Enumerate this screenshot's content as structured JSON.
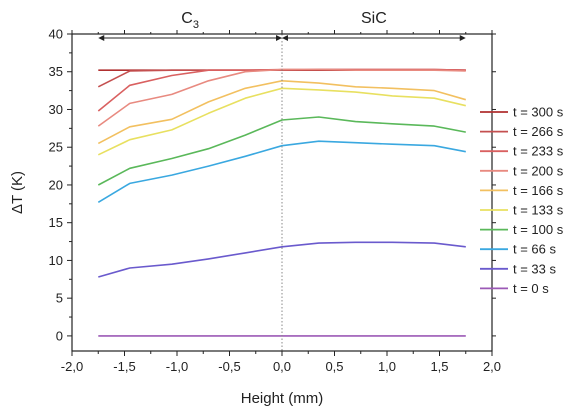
{
  "chart_data": {
    "type": "line",
    "xlabel": "Height (mm)",
    "ylabel": "ΔT (K)",
    "xlim": [
      -2.0,
      2.0
    ],
    "ylim": [
      -2,
      40
    ],
    "x_ticks": [
      "-2,0",
      "-1,5",
      "-1,0",
      "-0,5",
      "0,0",
      "0,5",
      "1,0",
      "1,5",
      "2,0"
    ],
    "x_tick_values": [
      -2.0,
      -1.5,
      -1.0,
      -0.5,
      0.0,
      0.5,
      1.0,
      1.5,
      2.0
    ],
    "y_ticks": [
      "0",
      "5",
      "10",
      "15",
      "20",
      "25",
      "30",
      "35",
      "40"
    ],
    "y_tick_values": [
      0,
      5,
      10,
      15,
      20,
      25,
      30,
      35,
      40
    ],
    "grid": false,
    "legend_position": "right",
    "regions": [
      {
        "label_main": "C",
        "label_sub": "3",
        "from": -1.75,
        "to": 0.0
      },
      {
        "label_main": "SiC",
        "label_sub": "",
        "from": 0.0,
        "to": 1.75
      }
    ],
    "divider_x": 0.0,
    "x": [
      -1.75,
      -1.45,
      -1.05,
      -0.7,
      -0.35,
      0.0,
      0.35,
      0.7,
      1.05,
      1.45,
      1.75
    ],
    "series": [
      {
        "name": "t = 300 s",
        "color": "#b03030",
        "values": [
          35.2,
          35.2,
          35.2,
          35.2,
          35.2,
          35.2,
          35.2,
          35.2,
          35.2,
          35.2,
          35.2
        ]
      },
      {
        "name": "t = 266 s",
        "color": "#c45050",
        "values": [
          33.0,
          35.1,
          35.2,
          35.2,
          35.2,
          35.2,
          35.3,
          35.3,
          35.3,
          35.3,
          35.2
        ]
      },
      {
        "name": "t = 233 s",
        "color": "#d96060",
        "values": [
          29.8,
          33.2,
          34.5,
          35.2,
          35.2,
          35.3,
          35.3,
          35.3,
          35.3,
          35.3,
          35.2
        ]
      },
      {
        "name": "t = 200 s",
        "color": "#e88a80",
        "values": [
          27.8,
          30.8,
          32.0,
          33.8,
          35.0,
          35.3,
          35.3,
          35.2,
          35.2,
          35.2,
          35.1
        ]
      },
      {
        "name": "t = 166 s",
        "color": "#f2c060",
        "values": [
          25.5,
          27.7,
          28.7,
          31.0,
          32.8,
          33.8,
          33.5,
          33.0,
          32.8,
          32.5,
          31.3
        ]
      },
      {
        "name": "t = 133 s",
        "color": "#e8e060",
        "values": [
          24.0,
          26.0,
          27.3,
          29.5,
          31.5,
          32.8,
          32.6,
          32.3,
          31.8,
          31.5,
          30.5
        ]
      },
      {
        "name": "t = 100 s",
        "color": "#5ab85a",
        "values": [
          20.0,
          22.2,
          23.5,
          24.8,
          26.6,
          28.6,
          29.0,
          28.4,
          28.1,
          27.8,
          27.0
        ]
      },
      {
        "name": "t = 66 s",
        "color": "#3aa8e0",
        "values": [
          17.7,
          20.2,
          21.3,
          22.5,
          23.8,
          25.2,
          25.8,
          25.6,
          25.4,
          25.2,
          24.4
        ]
      },
      {
        "name": "t = 33 s",
        "color": "#6a5acd",
        "values": [
          7.8,
          9.0,
          9.5,
          10.2,
          11.0,
          11.8,
          12.3,
          12.4,
          12.4,
          12.3,
          11.8
        ]
      },
      {
        "name": "t = 0 s",
        "color": "#9b59b6",
        "values": [
          0.0,
          0.0,
          0.0,
          0.0,
          0.0,
          0.0,
          0.0,
          0.0,
          0.0,
          0.0,
          0.0
        ]
      }
    ]
  }
}
